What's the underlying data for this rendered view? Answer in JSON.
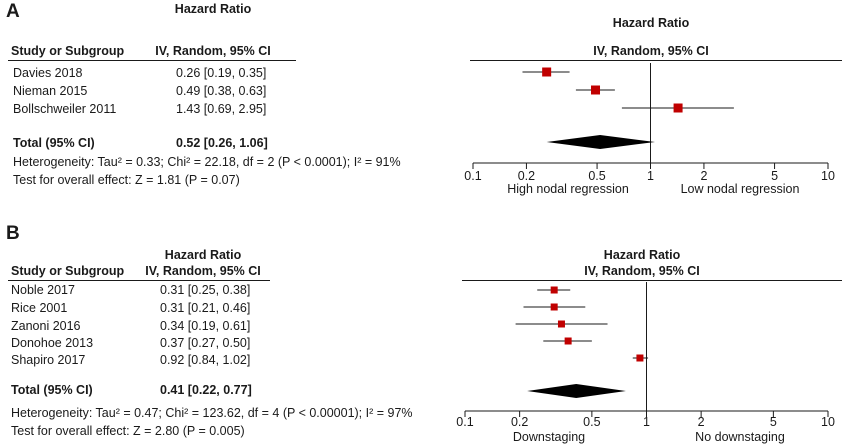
{
  "chart_data": [
    {
      "type": "forest",
      "panel_label": "A",
      "col_study": "Study or Subgroup",
      "col_hr_title": "Hazard Ratio",
      "col_hr_sub": "IV, Random, 95% CI",
      "plot_title": "Hazard Ratio",
      "plot_sub": "IV, Random, 95% CI",
      "studies": [
        {
          "name": "Davies 2018",
          "hr": 0.26,
          "lo": 0.19,
          "hi": 0.35,
          "ci_text": "0.26 [0.19, 0.35]"
        },
        {
          "name": "Nieman 2015",
          "hr": 0.49,
          "lo": 0.38,
          "hi": 0.63,
          "ci_text": "0.49 [0.38, 0.63]"
        },
        {
          "name": "Bollschweiler 2011",
          "hr": 1.43,
          "lo": 0.69,
          "hi": 2.95,
          "ci_text": "1.43 [0.69, 2.95]"
        }
      ],
      "total": {
        "label": "Total (95% CI)",
        "hr": 0.52,
        "lo": 0.26,
        "hi": 1.06,
        "ci_text": "0.52 [0.26, 1.06]"
      },
      "heterogeneity": "Heterogeneity: Tau² = 0.33; Chi² = 22.18, df = 2 (P < 0.0001); I² = 91%",
      "overall_effect": "Test for overall effect: Z = 1.81 (P = 0.07)",
      "xscale": "log",
      "xlim": [
        0.1,
        10
      ],
      "ticks": [
        0.1,
        0.2,
        0.5,
        1,
        2,
        5,
        10
      ],
      "tick_labels": [
        "0.1",
        "0.2",
        "0.5",
        "1",
        "2",
        "5",
        "10"
      ],
      "favours_left": "High nodal regression",
      "favours_right": "Low nodal regression",
      "marker_color": "#c00000",
      "diamond_color": "#000000"
    },
    {
      "type": "forest",
      "panel_label": "B",
      "col_study": "Study or Subgroup",
      "col_hr_title": "Hazard Ratio",
      "col_hr_sub": "IV, Random, 95% CI",
      "plot_title": "Hazard Ratio",
      "plot_sub": "IV, Random, 95% CI",
      "studies": [
        {
          "name": "Noble 2017",
          "hr": 0.31,
          "lo": 0.25,
          "hi": 0.38,
          "ci_text": "0.31 [0.25, 0.38]"
        },
        {
          "name": "Rice 2001",
          "hr": 0.31,
          "lo": 0.21,
          "hi": 0.46,
          "ci_text": "0.31 [0.21, 0.46]"
        },
        {
          "name": "Zanoni 2016",
          "hr": 0.34,
          "lo": 0.19,
          "hi": 0.61,
          "ci_text": "0.34 [0.19, 0.61]"
        },
        {
          "name": "Donohoe 2013",
          "hr": 0.37,
          "lo": 0.27,
          "hi": 0.5,
          "ci_text": "0.37 [0.27, 0.50]"
        },
        {
          "name": "Shapiro 2017",
          "hr": 0.92,
          "lo": 0.84,
          "hi": 1.02,
          "ci_text": "0.92 [0.84, 1.02]"
        }
      ],
      "total": {
        "label": "Total (95% CI)",
        "hr": 0.41,
        "lo": 0.22,
        "hi": 0.77,
        "ci_text": "0.41 [0.22, 0.77]"
      },
      "heterogeneity": "Heterogeneity: Tau² = 0.47; Chi² = 123.62, df = 4 (P < 0.00001); I² = 97%",
      "overall_effect": "Test for overall effect: Z = 2.80 (P = 0.005)",
      "xscale": "log",
      "xlim": [
        0.1,
        10
      ],
      "ticks": [
        0.1,
        0.2,
        0.5,
        1,
        2,
        5,
        10
      ],
      "tick_labels": [
        "0.1",
        "0.2",
        "0.5",
        "1",
        "2",
        "5",
        "10"
      ],
      "favours_left": "Downstaging",
      "favours_right": "No downstaging",
      "marker_color": "#c00000",
      "diamond_color": "#000000"
    }
  ]
}
